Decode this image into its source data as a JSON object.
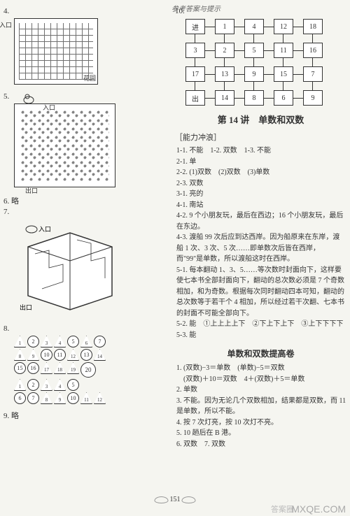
{
  "header": "参考答案与提示",
  "page_number": "151",
  "watermark_main": "MXQE.COM",
  "watermark_side": "答案圈",
  "left_column": {
    "items": [
      {
        "num": "4.",
        "label_in": "入口",
        "label_out": "花园"
      },
      {
        "num": "5.",
        "label_in": "入口",
        "label_out": "出口"
      },
      {
        "num": "6.",
        "text": "略"
      },
      {
        "num": "7.",
        "label_in": "入口",
        "label_out": "出口"
      },
      {
        "num": "8."
      },
      {
        "num": "9.",
        "text": "略"
      }
    ],
    "shapes": {
      "rows": [
        [
          "T1",
          "C2",
          "T3",
          "T4",
          "C5",
          "T6",
          "C7"
        ],
        [
          "T8",
          "T9",
          "C10",
          "C11",
          "T12",
          "C13",
          "T14"
        ],
        [
          "C15",
          "C16",
          "T17",
          "T18",
          "T19",
          "B20"
        ],
        [
          "T1",
          "C2",
          "T3",
          "T4",
          "C5"
        ],
        [
          "C6",
          "C7",
          "T8",
          "T9",
          "C10",
          "T11",
          "T12"
        ]
      ],
      "legend": {
        "T": "triangle",
        "C": "circle",
        "B": "circle-big"
      }
    }
  },
  "right_column": {
    "item10_num": "10.",
    "grid": {
      "rows": [
        [
          "进",
          "1",
          "4",
          "12",
          "18"
        ],
        [
          "3",
          "2",
          "5",
          "11",
          "16"
        ],
        [
          "17",
          "13",
          "9",
          "15",
          "7"
        ],
        [
          "出",
          "14",
          "8",
          "6",
          "9"
        ]
      ]
    },
    "section_title": "第 14 讲　单数和双数",
    "section_label": "［能力冲浪］",
    "answers": [
      "1-1. 不能　1-2. 双数　1-3. 不能",
      "2-1. 单",
      "2-2. (1)双数　(2)双数　(3)单数",
      "2-3. 双数",
      "3-1. 亮的",
      "4-1. 南站",
      "4-2. 9 个小朋友玩，最后在西边；16 个小朋友玩，最后在东边。",
      "4-3. 渡船 99 次后应到达西岸。因为船原来在东岸，渡船 1 次、3 次、5 次……即单数次后皆在西岸，而\"99\"是单数，所以渡船这时在西岸。",
      "5-1. 每本翻动 1、3、5……等次数时封面向下，这样要使七本书全部封面向下，翻动的总次数必须是 7 个奇数相加，和为奇数。根据每次同时翻动四本可知，翻动的总次数等于若干个 4 相加，所以经过若干次翻、七本书的封面不可能全部向下。",
      "5-2. 能　①上上上上下　②下上下上下　③上下下下下",
      "5-3. 能"
    ],
    "sub_title": "单数和双数提高卷",
    "exercises": [
      "1. (双数)−3＝单数　(单数)−5＝双数\n　(双数)＋10＝双数　4＋(双数)＋5＝单数",
      "2. 单数",
      "3. 不能。因为无论几个双数相加，结果都是双数，而 11 是单数，所以不能。",
      "4. 按 7 次灯亮，按 10 次灯不亮。",
      "5. 10 趟后在 B 港。",
      "6. 双数　7. 双数"
    ]
  }
}
